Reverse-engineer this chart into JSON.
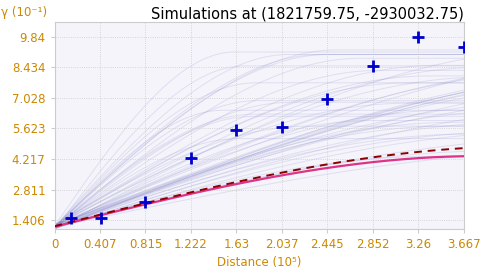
{
  "title": "Simulations at (1821759.75, -2930032.75)",
  "ylabel": "γ (10⁻¹)",
  "xlabel": "Distance (10⁵)",
  "xlim": [
    0,
    366700.0
  ],
  "ylim": [
    1.0,
    10.5
  ],
  "xticks": [
    0,
    40700.0,
    81500.0,
    122200.0,
    163000.0,
    203700.0,
    244500.0,
    285200.0,
    326000.0,
    366700.0
  ],
  "xtick_labels": [
    "0",
    "0.407",
    "0.815",
    "1.222",
    "1.63",
    "2.037",
    "2.445",
    "2.852",
    "3.26",
    "3.667"
  ],
  "yticks": [
    1.406,
    2.811,
    4.217,
    5.623,
    7.028,
    8.434,
    9.84
  ],
  "ytick_labels": [
    "1.406",
    "2.811",
    "4.217",
    "5.623",
    "7.028",
    "8.434",
    "9.84"
  ],
  "cross_x": [
    15000.0,
    42000.0,
    81500.0,
    122200.0,
    163000.0,
    203700.0,
    244500.0,
    285200.0,
    326000.0,
    366700.0
  ],
  "cross_y": [
    1.5,
    1.52,
    2.25,
    4.25,
    5.55,
    5.7,
    7.0,
    8.5,
    9.84,
    9.38
  ],
  "bg_color": "#ffffff",
  "plot_bg_color": "#f4f4fa",
  "sim_color": "#8888cc",
  "sim_alpha": 0.2,
  "median_color": "#dd3388",
  "dashed_color": "#8b0000",
  "cross_color": "#0000cc",
  "tick_color": "#cc8800",
  "label_color": "#cc8800",
  "nugget": 1.1,
  "sill_low": 4.3,
  "sill_high": 9.5,
  "range_low": 150000.0,
  "range_high": 600000.0,
  "n_sims": 50,
  "median_sill": 4.35,
  "median_range": 380000.0,
  "dashed_sill": 4.8,
  "dashed_range": 420000.0,
  "title_fontsize": 10.5,
  "axis_label_fontsize": 8.5,
  "tick_fontsize": 8.5
}
